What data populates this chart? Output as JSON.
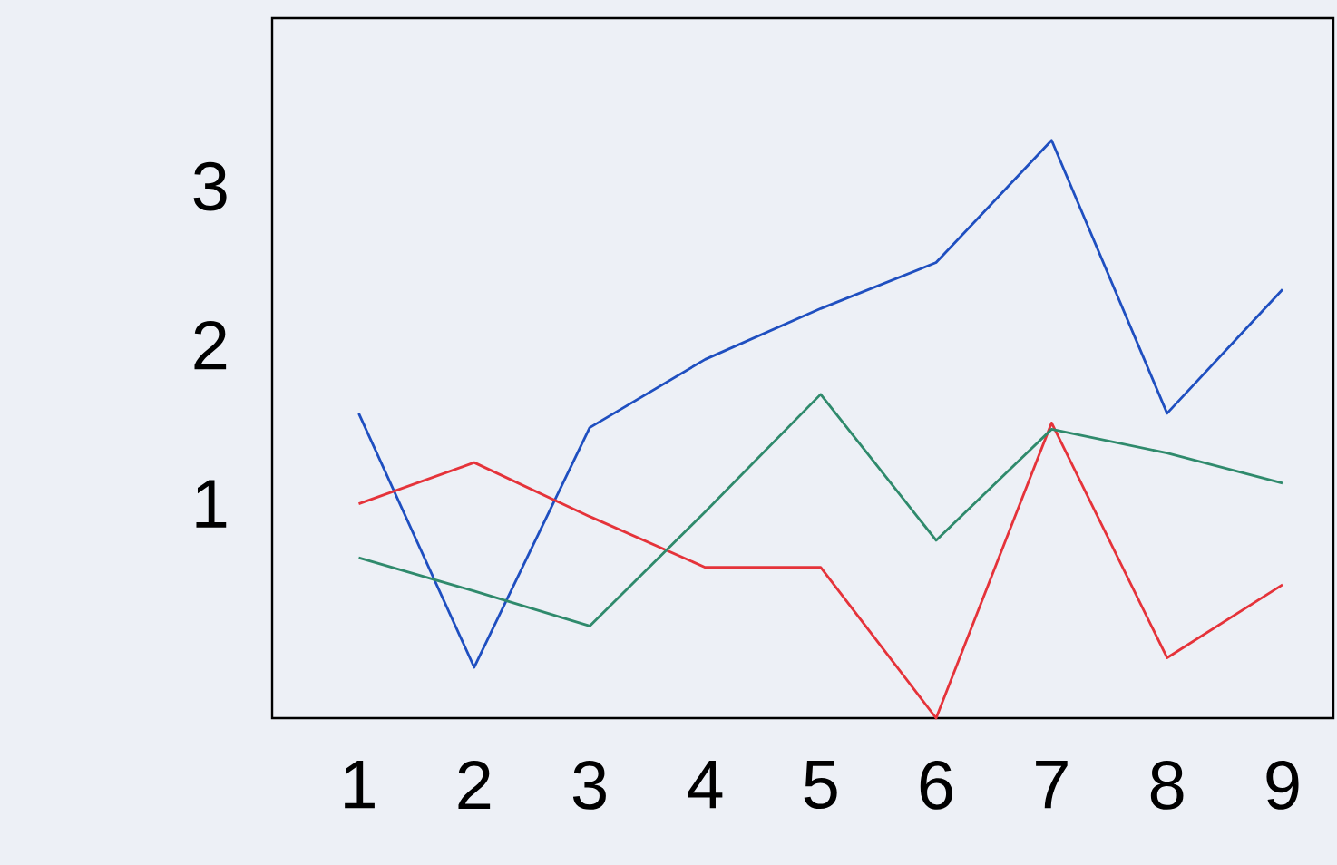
{
  "chart_data": {
    "type": "line",
    "x": [
      1,
      2,
      3,
      4,
      5,
      6,
      7,
      8,
      9
    ],
    "series": [
      {
        "color": "#1f4fc0",
        "values": [
          1.57,
          -0.03,
          1.48,
          1.91,
          2.23,
          2.52,
          3.29,
          1.57,
          2.35
        ]
      },
      {
        "color": "#e5333a",
        "values": [
          1.0,
          1.26,
          0.92,
          0.6,
          0.6,
          -0.35,
          1.51,
          0.03,
          0.49
        ]
      },
      {
        "color": "#2f8a6c",
        "values": [
          0.66,
          0.45,
          0.23,
          0.95,
          1.69,
          0.77,
          1.47,
          1.32,
          1.13
        ]
      }
    ],
    "xlim": [
      0.25,
      9.44
    ],
    "ylim": [
      -0.35,
      4.06
    ],
    "xticks": [
      1,
      2,
      3,
      4,
      5,
      6,
      7,
      8,
      9
    ],
    "yticks": [
      1,
      2,
      3
    ],
    "grid": false,
    "marker": "none",
    "line_style": "solid"
  }
}
